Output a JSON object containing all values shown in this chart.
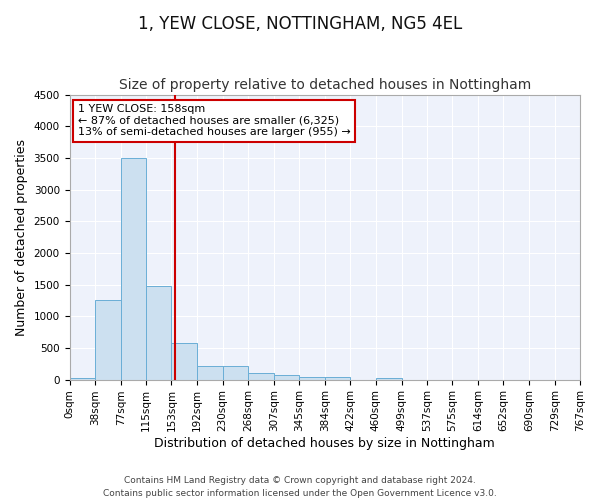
{
  "title": "1, YEW CLOSE, NOTTINGHAM, NG5 4EL",
  "subtitle": "Size of property relative to detached houses in Nottingham",
  "xlabel": "Distribution of detached houses by size in Nottingham",
  "ylabel": "Number of detached properties",
  "footer_line1": "Contains HM Land Registry data © Crown copyright and database right 2024.",
  "footer_line2": "Contains public sector information licensed under the Open Government Licence v3.0.",
  "bar_edges": [
    0,
    38,
    77,
    115,
    153,
    192,
    230,
    268,
    307,
    345,
    384,
    422,
    460,
    499,
    537,
    575,
    614,
    652,
    690,
    729,
    767
  ],
  "bar_heights": [
    30,
    1250,
    3500,
    1470,
    570,
    215,
    215,
    105,
    65,
    40,
    40,
    0,
    30,
    0,
    0,
    0,
    0,
    0,
    0,
    0
  ],
  "bar_color": "#cce0f0",
  "bar_edge_color": "#6aaed6",
  "property_line_x": 158,
  "property_line_color": "#cc0000",
  "annotation_line1": "1 YEW CLOSE: 158sqm",
  "annotation_line2": "← 87% of detached houses are smaller (6,325)",
  "annotation_line3": "13% of semi-detached houses are larger (955) →",
  "annotation_box_color": "#ffffff",
  "annotation_box_edge_color": "#cc0000",
  "ylim": [
    0,
    4500
  ],
  "yticks": [
    0,
    500,
    1000,
    1500,
    2000,
    2500,
    3000,
    3500,
    4000,
    4500
  ],
  "background_color": "#eef2fb",
  "grid_color": "#ffffff",
  "title_fontsize": 12,
  "subtitle_fontsize": 10,
  "axis_label_fontsize": 9,
  "tick_fontsize": 7.5,
  "annotation_fontsize": 8,
  "ylabel_fontsize": 9
}
